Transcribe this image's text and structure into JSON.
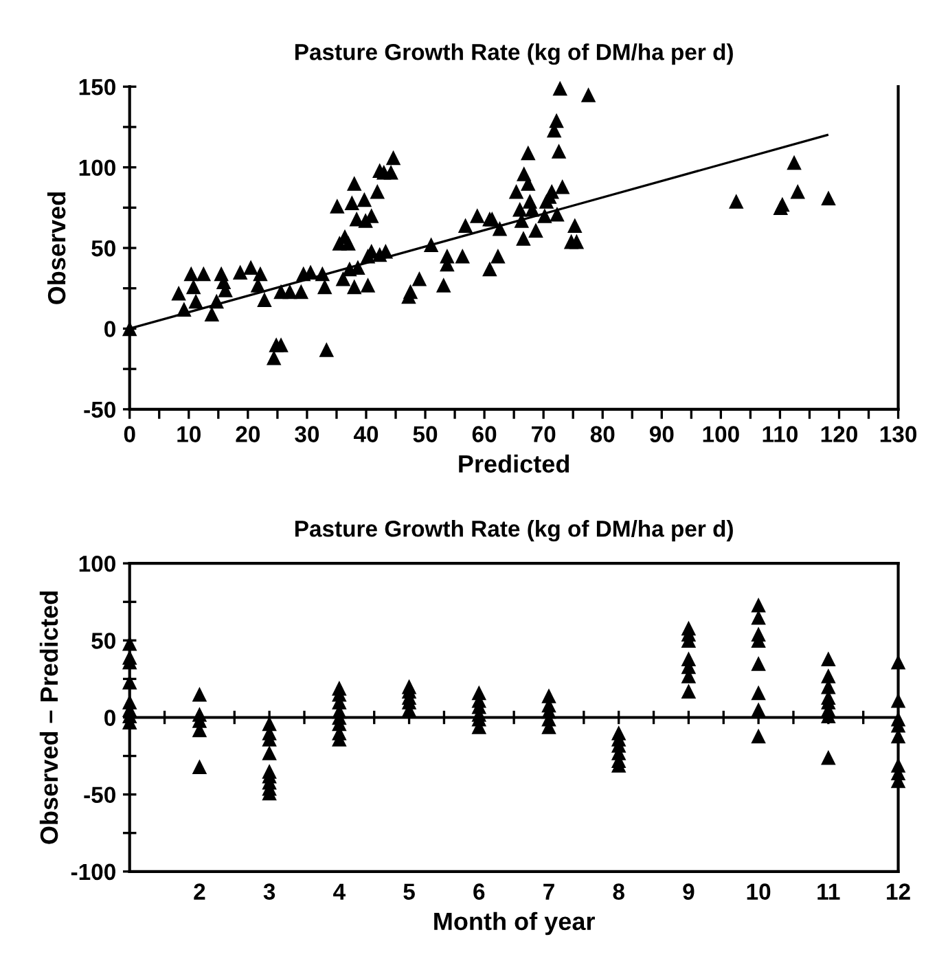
{
  "chart_data": [
    {
      "type": "scatter",
      "title": "Pasture Growth Rate (kg of DM/ha per d)",
      "xlabel": "Predicted",
      "ylabel": "Observed",
      "marker": "triangle",
      "grid": false,
      "xlim": [
        0,
        130
      ],
      "xticks": [
        0,
        {
          "value": 5,
          "label": null
        },
        10,
        {
          "value": 15,
          "label": null
        },
        20,
        {
          "value": 25,
          "label": null
        },
        30,
        {
          "value": 35,
          "label": null
        },
        40,
        {
          "value": 45,
          "label": null
        },
        50,
        {
          "value": 55,
          "label": null
        },
        60,
        {
          "value": 65,
          "label": null
        },
        70,
        {
          "value": 75,
          "label": null
        },
        80,
        {
          "value": 85,
          "label": null
        },
        90,
        {
          "value": 95,
          "label": null
        },
        100,
        {
          "value": 105,
          "label": null
        },
        110,
        {
          "value": 115,
          "label": null
        },
        120,
        {
          "value": 125,
          "label": null
        },
        130
      ],
      "ylim": [
        -50,
        150
      ],
      "yticks": [
        -50,
        {
          "value": -25,
          "label": null
        },
        0,
        {
          "value": 25,
          "label": null
        },
        50,
        {
          "value": 75,
          "label": null
        },
        100,
        {
          "value": 125,
          "label": null
        },
        150
      ],
      "series": [
        {
          "color": "#000000",
          "x": [
            0,
            8.3,
            9.2,
            10.4,
            10.8,
            11.2,
            12.5,
            13.9,
            14.7,
            15.5,
            15.9,
            16.2,
            18.7,
            20.5,
            22.1,
            21.7,
            22.8,
            24.8,
            25.6,
            24.4,
            25.6,
            27.1,
            29,
            29.4,
            30.6,
            32.6,
            33,
            33.3,
            35.1,
            35.5,
            36.4,
            37,
            36.1,
            37.2,
            38,
            38,
            37.6,
            38.6,
            38.4,
            39.7,
            39.9,
            40.9,
            40.3,
            40.3,
            40.9,
            41.9,
            42.3,
            43,
            42.3,
            43.3,
            44.2,
            44.6,
            47.2,
            47.5,
            49,
            51,
            53.1,
            53.7,
            53.7,
            56.3,
            56.8,
            58.8,
            60.9,
            60.9,
            61.3,
            62.3,
            62.6,
            65.4,
            66,
            66.3,
            66.6,
            66.7,
            67.4,
            67.4,
            67.7,
            68.1,
            68.7,
            70.2,
            70.5,
            71,
            71.4,
            71.8,
            72.2,
            72.6,
            72.8,
            72.3,
            73.2,
            74.7,
            75.3,
            75.6,
            77.6,
            102.6,
            110.1,
            110.4,
            112.4,
            113,
            118.2
          ],
          "values": [
            0,
            22,
            12,
            34,
            26,
            17,
            34,
            9,
            17,
            34,
            29,
            24,
            35,
            38,
            34,
            27,
            18,
            -10,
            -10,
            -18,
            23,
            23,
            23,
            34,
            35,
            34,
            26,
            -13,
            76,
            53,
            57,
            53,
            31,
            37,
            26,
            90,
            78,
            38,
            68,
            80,
            67,
            70,
            27,
            45,
            48,
            85,
            98,
            97,
            46,
            48,
            97,
            106,
            20,
            23,
            31,
            52,
            27,
            45,
            40,
            45,
            64,
            70,
            68,
            37,
            68,
            45,
            62,
            85,
            74,
            67,
            56,
            96,
            109,
            90,
            79,
            74,
            61,
            70,
            79,
            82,
            85,
            123,
            129,
            110,
            149,
            71,
            88,
            54,
            64,
            54,
            145,
            79,
            75,
            77,
            103,
            85,
            81
          ]
        },
        {
          "type": "line",
          "color": "#000000",
          "marker": "none",
          "x": [
            0,
            118
          ],
          "values": [
            0,
            120
          ]
        }
      ]
    },
    {
      "type": "scatter",
      "title": "Pasture Growth Rate (kg of DM/ha per d)",
      "xlabel": "Month of year",
      "ylabel": "Observed – Predicted",
      "marker": "triangle",
      "grid": false,
      "xlim": [
        1,
        12
      ],
      "xticks": [
        {
          "value": 1,
          "label": null
        },
        {
          "value": 1.5,
          "label": null
        },
        2,
        {
          "value": 2.5,
          "label": null
        },
        3,
        {
          "value": 3.5,
          "label": null
        },
        4,
        {
          "value": 4.5,
          "label": null
        },
        5,
        {
          "value": 5.5,
          "label": null
        },
        6,
        {
          "value": 6.5,
          "label": null
        },
        7,
        {
          "value": 7.5,
          "label": null
        },
        8,
        {
          "value": 8.5,
          "label": null
        },
        9,
        {
          "value": 9.5,
          "label": null
        },
        10,
        {
          "value": 10.5,
          "label": null
        },
        11,
        {
          "value": 11.5,
          "label": null
        },
        12
      ],
      "ylim": [
        -100,
        100
      ],
      "yticks": [
        -100,
        {
          "value": -75,
          "label": null
        },
        -50,
        {
          "value": -25,
          "label": null
        },
        0,
        {
          "value": 25,
          "label": null
        },
        50,
        {
          "value": 75,
          "label": null
        },
        100
      ],
      "ref_lines": [
        {
          "axis": "y",
          "value": 0,
          "color": "#000000"
        }
      ],
      "series": [
        {
          "color": "#000000",
          "x": [
            1,
            1,
            1,
            1,
            1,
            1,
            1,
            1,
            2,
            2,
            2,
            2,
            2,
            3,
            3,
            3,
            3,
            3,
            3,
            3,
            3,
            3,
            4,
            4,
            4,
            4,
            4,
            4,
            4,
            4,
            5,
            5,
            5,
            5,
            5,
            6,
            6,
            6,
            6,
            6,
            6,
            7,
            7,
            7,
            7,
            7,
            8,
            8,
            8,
            8,
            8,
            8,
            9,
            9,
            9,
            9,
            9,
            9,
            9,
            10,
            10,
            10,
            10,
            10,
            10,
            10,
            10,
            11,
            11,
            11,
            11,
            11,
            11,
            11,
            11,
            12,
            12,
            12,
            12,
            12,
            12,
            12,
            12
          ],
          "values": [
            48,
            39,
            36,
            23,
            10,
            5,
            1,
            -3,
            15,
            2,
            -2,
            -8,
            -32,
            -4,
            -10,
            -14,
            -23,
            -35,
            -38,
            -42,
            -46,
            -49,
            19,
            15,
            10,
            4,
            0,
            -4,
            -10,
            -14,
            20,
            17,
            13,
            10,
            5,
            16,
            11,
            7,
            2,
            -1,
            -6,
            14,
            8,
            4,
            -1,
            -6,
            -10,
            -14,
            -18,
            -23,
            -28,
            -31,
            58,
            54,
            50,
            38,
            33,
            27,
            17,
            73,
            65,
            54,
            50,
            35,
            16,
            5,
            -12,
            38,
            27,
            20,
            13,
            10,
            5,
            1,
            -26,
            36,
            11,
            -1,
            -5,
            -12,
            -31,
            -36,
            -41
          ]
        }
      ]
    }
  ]
}
